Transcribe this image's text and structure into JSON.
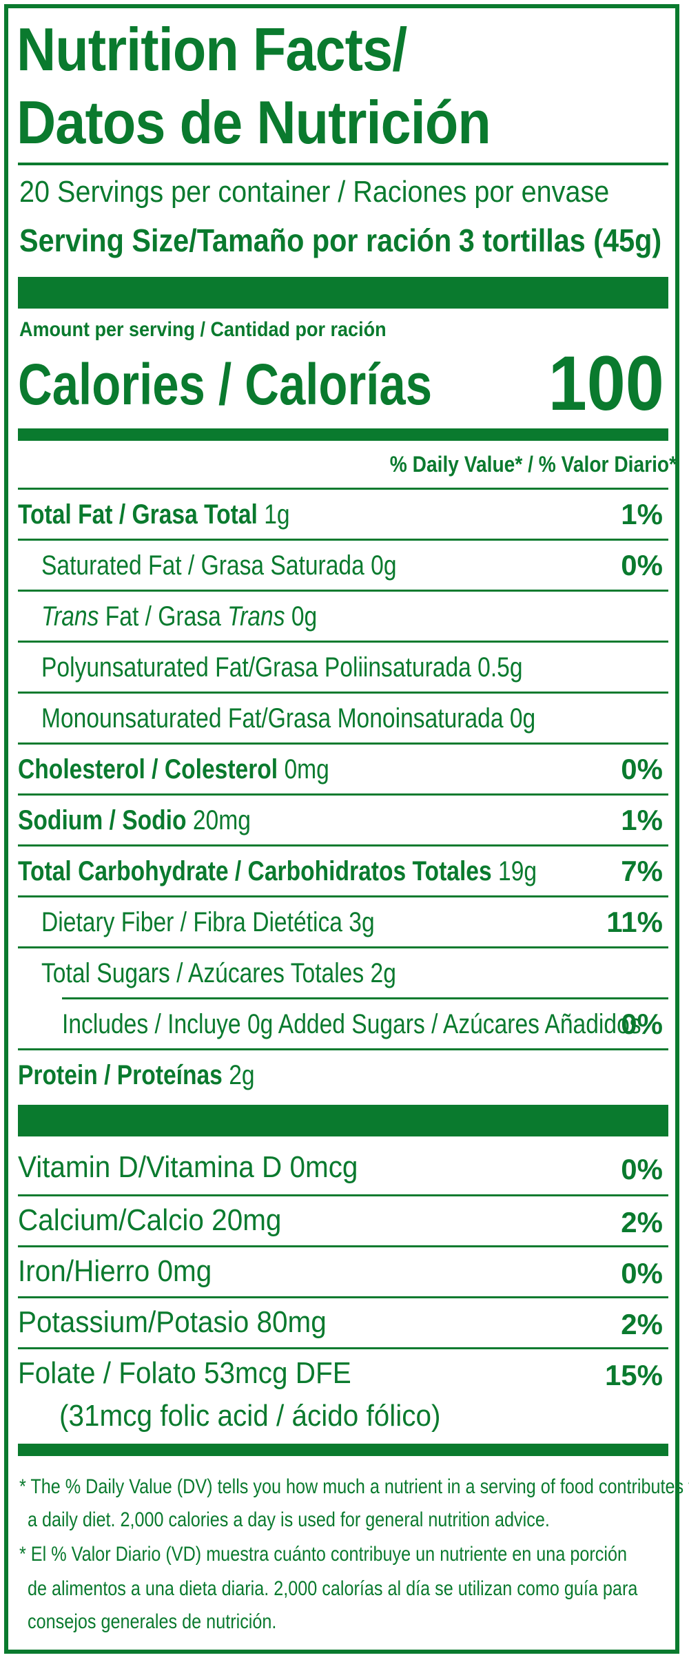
{
  "label": {
    "title_line1": "Nutrition Facts/",
    "title_line2": "Datos de Nutrición",
    "servings_per_container": "20 Servings per container / Raciones por envase",
    "serving_size_label": "Serving Size/Tamaño por ración",
    "serving_size_value": "3 tortillas (45g)",
    "amount_per_serving": "Amount per serving / Cantidad por ración",
    "calories_label": "Calories / Calorías",
    "calories_value": "100",
    "daily_value_header": "% Daily Value* / % Valor Diario*",
    "color": "#0a7a2e"
  },
  "nutrients": [
    {
      "name": "Total Fat / Grasa Total",
      "amount": "1g",
      "dv": "1%"
    },
    {
      "name": "Saturated Fat / Grasa Saturada",
      "amount": "0g",
      "dv": "0%"
    },
    {
      "name_prefix": "Trans",
      "name_mid": " Fat / Grasa ",
      "name_italic2": "Trans",
      "amount": "0g",
      "dv": ""
    },
    {
      "name": "Polyunsaturated Fat/Grasa Poliinsaturada",
      "amount": "0.5g",
      "dv": ""
    },
    {
      "name": "Monounsaturated Fat/Grasa Monoinsaturada",
      "amount": "0g",
      "dv": ""
    },
    {
      "name": "Cholesterol / Colesterol",
      "amount": "0mg",
      "dv": "0%"
    },
    {
      "name": "Sodium / Sodio",
      "amount": "20mg",
      "dv": "1%"
    },
    {
      "name": "Total Carbohydrate / Carbohidratos Totales",
      "amount": "19g",
      "dv": "7%"
    },
    {
      "name": "Dietary Fiber / Fibra Dietética",
      "amount": "3g",
      "dv": "11%"
    },
    {
      "name": "Total Sugars / Azúcares Totales",
      "amount": "2g",
      "dv": ""
    },
    {
      "name": "Includes / Incluye 0g Added Sugars / Azúcares Añadidos",
      "amount": "",
      "dv": "0%"
    },
    {
      "name": "Protein / Proteínas",
      "amount": "2g",
      "dv": ""
    }
  ],
  "vitamins": [
    {
      "text": "Vitamin D/Vitamina D 0mcg",
      "dv": "0%"
    },
    {
      "text": "Calcium/Calcio 20mg",
      "dv": "2%"
    },
    {
      "text": "Iron/Hierro 0mg",
      "dv": "0%"
    },
    {
      "text": "Potassium/Potasio 80mg",
      "dv": "2%"
    },
    {
      "text": "Folate / Folato 53mcg DFE",
      "dv": "15%"
    },
    {
      "text": "(31mcg folic acid / ácido fólico)",
      "dv": ""
    }
  ],
  "footnote": {
    "en_line1": "* The % Daily Value (DV) tells you how much a nutrient in a serving of food contributes to",
    "en_line2": "a daily diet. 2,000 calories a day is used for general nutrition advice.",
    "es_line1": "* El % Valor Diario (VD) muestra cuánto contribuye un nutriente en una porción",
    "es_line2": "de alimentos a una dieta diaria. 2,000 calorías al día se utilizan como guía para",
    "es_line3": "consejos generales de nutrición."
  }
}
